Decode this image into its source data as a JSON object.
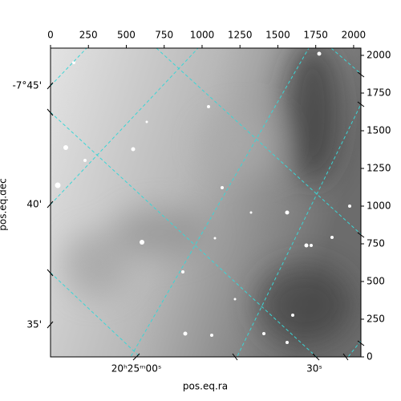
{
  "chart_data": {
    "type": "image",
    "xlabel": "pos.eq.ra",
    "ylabel": "pos.eq.dec",
    "xlim": [
      0,
      2048
    ],
    "ylim": [
      0,
      2048
    ],
    "xticks": [
      0,
      250,
      500,
      750,
      1000,
      1250,
      1500,
      1750,
      2000
    ],
    "yticks": [
      0,
      250,
      500,
      750,
      1000,
      1250,
      1500,
      1750,
      2000
    ],
    "ra_tick_labels": [
      "20ʰ25ᵐ00ˢ",
      "30ˢ"
    ],
    "dec_tick_labels": [
      "-7°45'",
      "40'",
      "35'"
    ],
    "grid": true,
    "grid_color": "#3ad6d6"
  }
}
